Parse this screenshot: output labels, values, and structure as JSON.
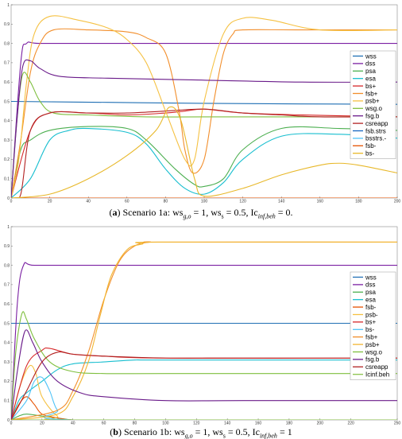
{
  "chart_data": [
    {
      "type": "line",
      "caption": "(a) Scenario 1a: ws_g,o = 1, ws_s = 0.5, Ic_inf,beh = 0.",
      "caption_parts": {
        "letter": "a",
        "prefix": "(",
        "suffix": ") Scenario 1a: ws",
        "sub1": "g,o",
        "mid1": " = 1, ws",
        "sub2": "s",
        "mid2": " = 0.5, Ic",
        "sub3": "inf,beh",
        "end": " = 0."
      },
      "xlim": [
        0,
        200
      ],
      "ylim": [
        0,
        1
      ],
      "xticks": [
        0,
        20,
        40,
        60,
        80,
        100,
        120,
        140,
        160,
        180,
        200
      ],
      "yticks": [
        0,
        0.1,
        0.2,
        0.3,
        0.4,
        0.5,
        0.6,
        0.7,
        0.8,
        0.9,
        1
      ],
      "grid": false,
      "legend": "right",
      "series": [
        {
          "name": "wss",
          "color": "#1f6fb4",
          "x": [
            0,
            50,
            100,
            150,
            200
          ],
          "values": [
            0.5,
            0.495,
            0.49,
            0.487,
            0.485
          ]
        },
        {
          "name": "dss",
          "color": "#7a1fa2",
          "x": [
            0,
            5,
            8,
            15,
            50,
            100,
            150,
            200
          ],
          "values": [
            0,
            0.7,
            0.8,
            0.8,
            0.8,
            0.8,
            0.8,
            0.8
          ]
        },
        {
          "name": "psa",
          "color": "#4caf50",
          "x": [
            0,
            5,
            10,
            20,
            40,
            60,
            70,
            85,
            95,
            100,
            110,
            120,
            140,
            170,
            200
          ],
          "values": [
            0,
            0.25,
            0.3,
            0.35,
            0.37,
            0.36,
            0.3,
            0.15,
            0.07,
            0.06,
            0.1,
            0.25,
            0.36,
            0.36,
            0.35
          ]
        },
        {
          "name": "esa",
          "color": "#17becf",
          "x": [
            0,
            10,
            20,
            30,
            40,
            60,
            70,
            80,
            90,
            100,
            110,
            120,
            140,
            170,
            200
          ],
          "values": [
            0,
            0.1,
            0.3,
            0.35,
            0.36,
            0.34,
            0.28,
            0.15,
            0.05,
            0.02,
            0.08,
            0.2,
            0.32,
            0.33,
            0.31
          ]
        },
        {
          "name": "bs+",
          "color": "#d62728",
          "x": [
            0,
            10,
            20,
            40,
            60,
            80,
            90,
            100,
            120,
            150,
            200
          ],
          "values": [
            0,
            0.35,
            0.44,
            0.44,
            0.43,
            0.44,
            0.45,
            0.46,
            0.44,
            0.43,
            0.42
          ]
        },
        {
          "name": "fsb+",
          "color": "#f28e2b",
          "x": [
            0,
            5,
            10,
            15,
            22,
            40,
            60,
            70,
            80,
            87,
            90,
            94,
            100,
            105,
            110,
            115,
            120,
            150,
            200
          ],
          "values": [
            0,
            0.3,
            0.65,
            0.8,
            0.87,
            0.87,
            0.86,
            0.83,
            0.75,
            0.45,
            0.25,
            0.13,
            0.2,
            0.5,
            0.75,
            0.85,
            0.87,
            0.87,
            0.87
          ]
        },
        {
          "name": "psb+",
          "color": "#f5c142",
          "x": [
            0,
            4,
            8,
            12,
            20,
            35,
            50,
            60,
            70,
            80,
            90,
            95,
            100,
            110,
            120,
            135,
            160,
            200
          ],
          "values": [
            0,
            0.2,
            0.6,
            0.85,
            0.94,
            0.92,
            0.88,
            0.82,
            0.7,
            0.45,
            0.2,
            0.2,
            0.5,
            0.85,
            0.93,
            0.92,
            0.87,
            0.87
          ]
        },
        {
          "name": "wsg.o",
          "color": "#7fbf3f",
          "x": [
            0,
            3,
            6,
            10,
            15,
            22,
            40,
            70,
            100,
            200
          ],
          "values": [
            0,
            0.4,
            0.64,
            0.6,
            0.5,
            0.44,
            0.43,
            0.42,
            0.42,
            0.42
          ]
        },
        {
          "name": "fsg.b",
          "color": "#6a1b8a",
          "x": [
            0,
            3,
            6,
            10,
            15,
            25,
            50,
            100,
            150,
            200
          ],
          "values": [
            0,
            0.4,
            0.68,
            0.71,
            0.67,
            0.63,
            0.62,
            0.61,
            0.6,
            0.6
          ]
        },
        {
          "name": "csreapp",
          "color": "#b22222",
          "x": [
            0,
            5,
            10,
            20,
            40,
            60,
            80,
            100,
            120,
            140,
            160,
            200
          ],
          "values": [
            0,
            0.02,
            0.35,
            0.44,
            0.44,
            0.44,
            0.45,
            0.46,
            0.44,
            0.43,
            0.42,
            0.42
          ]
        },
        {
          "name": "fsb.strs",
          "color": "#1565c0",
          "x": [
            0,
            100,
            200
          ],
          "values": [
            0,
            0,
            0
          ]
        },
        {
          "name": "bsstrs.-",
          "color": "#4fc3f7",
          "x": [
            0,
            100,
            200
          ],
          "values": [
            0,
            0,
            0
          ]
        },
        {
          "name": "fsb-",
          "color": "#e65100",
          "x": [
            0,
            100,
            200
          ],
          "values": [
            0,
            0,
            0
          ]
        },
        {
          "name": "bs-",
          "color": "#e8b82a",
          "x": [
            0,
            20,
            40,
            60,
            75,
            82,
            88,
            95,
            100,
            120,
            140,
            160,
            170,
            180,
            200
          ],
          "values": [
            0,
            0.02,
            0.1,
            0.22,
            0.35,
            0.47,
            0.4,
            0.1,
            0.01,
            0.05,
            0.12,
            0.17,
            0.18,
            0.17,
            0.13
          ]
        }
      ]
    },
    {
      "type": "line",
      "caption": "(b) Scenario 1b: ws_g,o = 1, ws_s = 0.5, Ic_inf,beh = 1",
      "caption_parts": {
        "letter": "b",
        "prefix": "(",
        "suffix": ") Scenario 1b: ws",
        "sub1": "g,o",
        "mid1": " = 1, ws",
        "sub2": "s",
        "mid2": " = 0.5, Ic",
        "sub3": "inf,beh",
        "end": " = 1"
      },
      "xlim": [
        0,
        250
      ],
      "ylim": [
        0,
        1
      ],
      "xticks": [
        0,
        20,
        40,
        60,
        80,
        100,
        120,
        140,
        160,
        180,
        200,
        220,
        250
      ],
      "yticks": [
        0,
        0.1,
        0.2,
        0.3,
        0.4,
        0.5,
        0.6,
        0.7,
        0.8,
        0.9,
        1
      ],
      "grid": false,
      "legend": "right",
      "series": [
        {
          "name": "wss",
          "color": "#1f6fb4",
          "x": [
            0,
            250
          ],
          "values": [
            0.5,
            0.5
          ]
        },
        {
          "name": "dss",
          "color": "#7a1fa2",
          "x": [
            0,
            4,
            8,
            15,
            50,
            250
          ],
          "values": [
            0,
            0.6,
            0.8,
            0.8,
            0.8,
            0.8
          ]
        },
        {
          "name": "psa",
          "color": "#4caf50",
          "x": [
            0,
            5,
            10,
            20,
            30,
            40,
            60,
            100,
            250
          ],
          "values": [
            0,
            0.02,
            0.03,
            0.02,
            0.01,
            0,
            0,
            0,
            0
          ]
        },
        {
          "name": "esa",
          "color": "#17becf",
          "x": [
            0,
            5,
            10,
            20,
            30,
            40,
            60,
            80,
            100,
            250
          ],
          "values": [
            0,
            0.1,
            0.14,
            0.2,
            0.26,
            0.29,
            0.3,
            0.31,
            0.31,
            0.31
          ]
        },
        {
          "name": "fsb-",
          "color": "#e65100",
          "x": [
            0,
            5,
            10,
            15,
            20,
            30,
            40,
            60,
            250
          ],
          "values": [
            0,
            0.08,
            0.12,
            0.08,
            0.03,
            0.01,
            0,
            0,
            0
          ]
        },
        {
          "name": "psb-",
          "color": "#f5c142",
          "x": [
            0,
            6,
            12,
            16,
            20,
            30,
            40,
            250
          ],
          "values": [
            0,
            0.18,
            0.28,
            0.24,
            0.12,
            0.02,
            0,
            0
          ]
        },
        {
          "name": "bs+",
          "color": "#d62728",
          "x": [
            0,
            10,
            20,
            25,
            40,
            60,
            100,
            250
          ],
          "values": [
            0,
            0.28,
            0.36,
            0.37,
            0.34,
            0.33,
            0.32,
            0.32
          ]
        },
        {
          "name": "bs-",
          "color": "#4fc3f7",
          "x": [
            0,
            10,
            15,
            20,
            25,
            30,
            40,
            250
          ],
          "values": [
            0,
            0.1,
            0.2,
            0.22,
            0.15,
            0.05,
            0,
            0
          ]
        },
        {
          "name": "fsb+",
          "color": "#f28e2b",
          "x": [
            0,
            30,
            40,
            50,
            60,
            70,
            80,
            90,
            100,
            250
          ],
          "values": [
            0,
            0.05,
            0.15,
            0.35,
            0.62,
            0.82,
            0.9,
            0.92,
            0.92,
            0.92
          ]
        },
        {
          "name": "psb+",
          "color": "#f2b632",
          "x": [
            0,
            30,
            40,
            50,
            58,
            65,
            75,
            85,
            95,
            250
          ],
          "values": [
            0,
            0.03,
            0.12,
            0.3,
            0.55,
            0.75,
            0.88,
            0.91,
            0.92,
            0.92
          ]
        },
        {
          "name": "wsg.o",
          "color": "#7fbf3f",
          "x": [
            0,
            3,
            7,
            10,
            15,
            25,
            40,
            60,
            100,
            250
          ],
          "values": [
            0,
            0.35,
            0.55,
            0.52,
            0.42,
            0.3,
            0.25,
            0.24,
            0.24,
            0.24
          ]
        },
        {
          "name": "fsg.b",
          "color": "#6a1b8a",
          "x": [
            0,
            4,
            9,
            14,
            20,
            30,
            45,
            60,
            100,
            150,
            250
          ],
          "values": [
            0,
            0.25,
            0.46,
            0.4,
            0.3,
            0.2,
            0.14,
            0.12,
            0.1,
            0.1,
            0.1
          ]
        },
        {
          "name": "csreapp",
          "color": "#b22222",
          "x": [
            0,
            10,
            20,
            30,
            40,
            60,
            100,
            150,
            250
          ],
          "values": [
            0,
            0.15,
            0.3,
            0.35,
            0.34,
            0.33,
            0.32,
            0.32,
            0.32
          ]
        },
        {
          "name": "Icinf.beh",
          "color": "#8bc34a",
          "x": [
            0,
            250
          ],
          "values": [
            0,
            0
          ]
        }
      ]
    }
  ]
}
